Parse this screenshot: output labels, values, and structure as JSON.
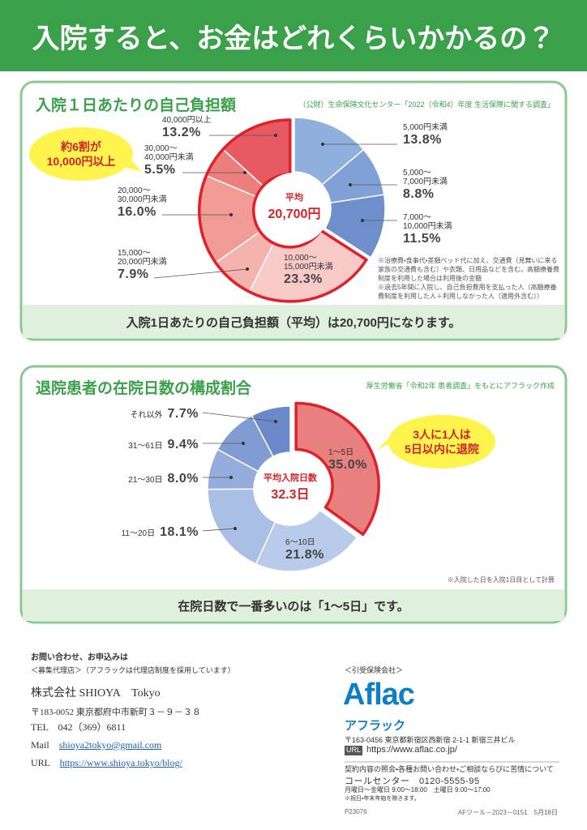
{
  "header": {
    "title": "入院すると、お金はどれくらいかかるの？"
  },
  "chart_data": [
    {
      "type": "donut",
      "title": "入院１日あたりの自己負担額",
      "source": "（公財）生命保険文化センター「2022（令和4）年度 生活保障に関する調査」",
      "categories": [
        "5,000円未満",
        "5,000～\n7,000円未満",
        "7,000～\n10,000円未満",
        "10,000～\n15,000円未満",
        "15,000～\n20,000円未満",
        "20,000～\n30,000円未満",
        "30,000～\n40,000円未満",
        "40,000円以上"
      ],
      "values": [
        13.8,
        8.8,
        11.5,
        23.3,
        7.9,
        16.0,
        5.5,
        13.2
      ],
      "value_labels": [
        "13.8%",
        "8.8%",
        "11.5%",
        "23.3%",
        "7.9%",
        "16.0%",
        "5.5%",
        "13.2%"
      ],
      "colors": [
        "#8fb0dc",
        "#7fa1d6",
        "#6e8fcb",
        "#f7c9c7",
        "#f4b3ad",
        "#f09c95",
        "#eb7f7b",
        "#e85a63"
      ],
      "center_title": "平均",
      "center_value": "20,700円",
      "callout": "約6割が\n10,000円以上",
      "notes": [
        "※治療費・食事代・差額ベッド代に加え、交通費（見舞いに来る家族の交通費も含む）や衣類、日用品などを含む。高額療養費制度を利用した場合は利用後の金額",
        "※過去5年間に入院し、自己負担費用を支払った人（高額療養費制度を利用した人＋利用しなかった人（適用外含む））"
      ],
      "summary": "入院1日あたりの自己負担額（平均）は20,700円になります。"
    },
    {
      "type": "donut",
      "title": "退院患者の在院日数の構成割合",
      "source": "厚生労働省「令和2年 患者調査」をもとにアフラック作成",
      "categories": [
        "1～5日",
        "6～10日",
        "11～20日",
        "21～30日",
        "31～61日",
        "それ以外"
      ],
      "values": [
        35.0,
        21.8,
        18.1,
        8.0,
        9.4,
        7.7
      ],
      "value_labels": [
        "35.0%",
        "21.8%",
        "18.1%",
        "8.0%",
        "9.4%",
        "7.7%"
      ],
      "colors": [
        "#e8807f",
        "#b9cbeb",
        "#a9bfe6",
        "#94addd",
        "#809cd3",
        "#6b89c8"
      ],
      "center_title": "平均入院日数",
      "center_value": "32.3日",
      "callout": "3人に1人は\n5日以内に退院",
      "notes": [
        "※入院した日を入院1日目として計算"
      ],
      "summary": "在院日数で一番多いのは「1～5日」です。"
    }
  ],
  "contact": {
    "heading": "お問い合わせ、お申込みは",
    "agency_label": "＜募集代理店＞（アフラックは代理店制度を採用しています）",
    "company": "株式会社 SHIOYA　Tokyo",
    "address": "〒183-0052 東京都府中市新町３－９－３８",
    "tel": "TEL　042（369）6811",
    "mail_label": "Mail",
    "mail": "shioya2tokyo@gmail.com",
    "url_label": "URL",
    "url": "https://www.shioya.tokyo/blog/"
  },
  "insurer": {
    "label": "＜引受保険会社＞",
    "logo": "Aflac",
    "name": "アフラック",
    "address": "〒163-0456 東京都新宿区西新宿 2-1-1 新宿三井ビル",
    "url_label": "URL",
    "url": "https://www.aflac.co.jp/",
    "inquiry": "契約内容の照会・各種お問い合わせ・ご相談ならびに苦情について",
    "call_center": "コールセンター　0120-5555-95",
    "hours": "月曜日～金曜日 9:00～18:00　土曜日 9:00～17:00",
    "hours_note": "※祝日・年末年始を除きます。"
  },
  "footer": {
    "code": "P23076",
    "tool": "AFツール－2023－0151　5月18日"
  }
}
